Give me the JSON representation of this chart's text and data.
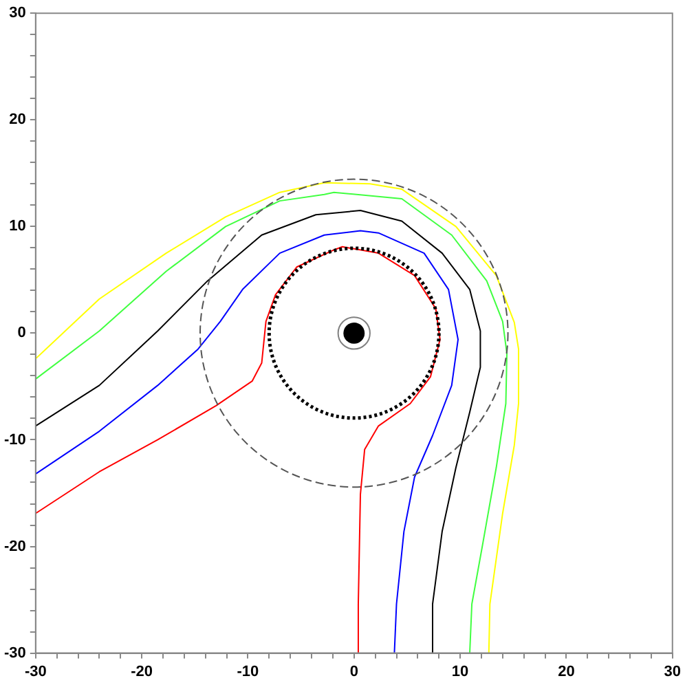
{
  "chart_data": {
    "type": "line",
    "marker": "none",
    "line_style": "solid",
    "grid": false,
    "legend": false,
    "xlim": [
      -30,
      30
    ],
    "ylim": [
      -30,
      30
    ],
    "xticks": [
      -30,
      {
        "value": -28,
        "label": null
      },
      {
        "value": -26,
        "label": null
      },
      {
        "value": -24,
        "label": null
      },
      {
        "value": -22,
        "label": null
      },
      -20,
      {
        "value": -18,
        "label": null
      },
      {
        "value": -16,
        "label": null
      },
      {
        "value": -14,
        "label": null
      },
      {
        "value": -12,
        "label": null
      },
      -10,
      {
        "value": -8,
        "label": null
      },
      {
        "value": -6,
        "label": null
      },
      {
        "value": -4,
        "label": null
      },
      {
        "value": -2,
        "label": null
      },
      0,
      {
        "value": 2,
        "label": null
      },
      {
        "value": 4,
        "label": null
      },
      {
        "value": 6,
        "label": null
      },
      {
        "value": 8,
        "label": null
      },
      10,
      {
        "value": 12,
        "label": null
      },
      {
        "value": 14,
        "label": null
      },
      {
        "value": 16,
        "label": null
      },
      {
        "value": 18,
        "label": null
      },
      20,
      {
        "value": 22,
        "label": null
      },
      {
        "value": 24,
        "label": null
      },
      {
        "value": 26,
        "label": null
      },
      {
        "value": 28,
        "label": null
      },
      30
    ],
    "yticks": [
      -30,
      {
        "value": -28,
        "label": null
      },
      {
        "value": -26,
        "label": null
      },
      {
        "value": -24,
        "label": null
      },
      {
        "value": -22,
        "label": null
      },
      -20,
      {
        "value": -18,
        "label": null
      },
      {
        "value": -16,
        "label": null
      },
      {
        "value": -14,
        "label": null
      },
      {
        "value": -12,
        "label": null
      },
      -10,
      {
        "value": -8,
        "label": null
      },
      {
        "value": -6,
        "label": null
      },
      {
        "value": -4,
        "label": null
      },
      {
        "value": -2,
        "label": null
      },
      0,
      {
        "value": 2,
        "label": null
      },
      {
        "value": 4,
        "label": null
      },
      {
        "value": 6,
        "label": null
      },
      {
        "value": 8,
        "label": null
      },
      10,
      {
        "value": 12,
        "label": null
      },
      {
        "value": 14,
        "label": null
      },
      {
        "value": 16,
        "label": null
      },
      {
        "value": 18,
        "label": null
      },
      20,
      {
        "value": 22,
        "label": null
      },
      {
        "value": 24,
        "label": null
      },
      {
        "value": 26,
        "label": null
      },
      {
        "value": 28,
        "label": null
      },
      30
    ],
    "series": [
      {
        "color": "#ffff00",
        "x": [
          -30,
          -24,
          -17.7,
          -12.1,
          -7,
          -2.8,
          1.5,
          4.5,
          9.6,
          13.4,
          15.1,
          15.5,
          15.5,
          15.1,
          14,
          12.8,
          12.7
        ],
        "values": [
          -2.4,
          3.2,
          7.5,
          10.9,
          13.2,
          14.1,
          14,
          13.5,
          10,
          5.4,
          1,
          -1.5,
          -6.6,
          -10.5,
          -16.9,
          -25.4,
          -30
        ]
      },
      {
        "color": "#40ff40",
        "x": [
          -30,
          -24,
          -17.7,
          -12.1,
          -7,
          -2.8,
          -1.9,
          4.5,
          9.2,
          12.5,
          14,
          14.4,
          14.3,
          13.4,
          12.1,
          11.1,
          10.9
        ],
        "values": [
          -4.3,
          0.2,
          5.8,
          10,
          12.4,
          13,
          13.2,
          12.6,
          9.2,
          4.9,
          1.1,
          -1.9,
          -6.6,
          -12.6,
          -19.9,
          -25.4,
          -30
        ]
      },
      {
        "color": "#000000",
        "x": [
          -30,
          -24,
          -18.5,
          -13.8,
          -8.7,
          -3.6,
          0.6,
          4.5,
          8.3,
          10.9,
          11.9,
          11.9,
          10.9,
          9.6,
          8.3,
          7.4,
          7.4
        ],
        "values": [
          -8.7,
          -4.9,
          0.2,
          4.9,
          9.2,
          11.1,
          11.5,
          10.5,
          7.5,
          4.1,
          0.2,
          -3.2,
          -7.4,
          -12.6,
          -18.6,
          -25.4,
          -30
        ]
      },
      {
        "color": "#0000ff",
        "x": [
          -30,
          -24,
          -18.5,
          -14.7,
          -12.6,
          -10.5,
          -7,
          -2.8,
          0.6,
          2.3,
          6.6,
          8.9,
          9.8,
          9.2,
          7.4,
          5.7,
          4.7,
          4,
          3.8
        ],
        "values": [
          -13.2,
          -9.2,
          -4.9,
          -1.5,
          1.1,
          4.1,
          7.5,
          9.2,
          9.6,
          9.4,
          7.5,
          4.1,
          -0.6,
          -4.9,
          -9.6,
          -13.5,
          -18.6,
          -25.4,
          -30
        ]
      },
      {
        "color": "#ff0000",
        "x": [
          -30,
          -24,
          -18.5,
          -13,
          -9.6,
          -8.7,
          -8.3,
          -7.4,
          -5.4,
          -1.9,
          -1.1,
          2.3,
          5.7,
          7.7,
          8.1,
          7.2,
          5.3,
          2.3,
          1,
          0.6,
          0.4,
          0.4
        ],
        "values": [
          -16.9,
          -13,
          -10,
          -6.8,
          -4.5,
          -2.8,
          1.1,
          3.6,
          6.2,
          7.8,
          8.1,
          7.5,
          5.4,
          2.3,
          -0.6,
          -4.1,
          -6.6,
          -8.7,
          -10.9,
          -15.1,
          -25.4,
          -30
        ]
      }
    ]
  }
}
